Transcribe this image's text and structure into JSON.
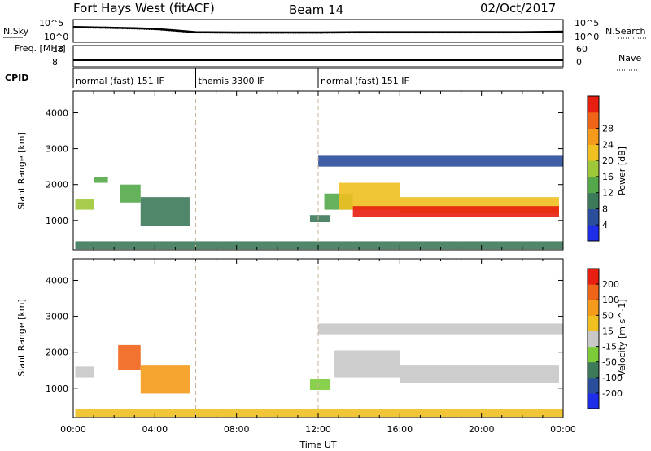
{
  "header": {
    "station": "Fort Hays West (fitACF)",
    "beam": "Beam 14",
    "date": "02/Oct/2017"
  },
  "colors": {
    "noise_trace": "#000000",
    "panel_border": "#000000",
    "dashed_divider": "#c8b49a"
  },
  "chart_data": [
    {
      "type": "line",
      "name": "noise-panel",
      "left_label": "N.Sky",
      "right_label": "N.Search",
      "left_ticks": [
        "10^5",
        "10^0"
      ],
      "right_ticks": [
        "10^5",
        "10^0"
      ],
      "y_scale": "log",
      "x": [
        0,
        1,
        2,
        3,
        4,
        5,
        6,
        8,
        10,
        12,
        14,
        16,
        18,
        20,
        22,
        24
      ],
      "series": [
        {
          "values": [
            3000,
            2500,
            2000,
            1500,
            1000,
            400,
            150,
            120,
            120,
            120,
            150,
            150,
            150,
            150,
            150,
            200
          ]
        }
      ]
    },
    {
      "type": "line",
      "name": "frequency-panel",
      "left_label": "Freq. [MHz]",
      "right_label": "Nave",
      "left_ticks": [
        "18",
        "8"
      ],
      "right_ticks": [
        "60",
        "0"
      ],
      "x": [
        0,
        24
      ],
      "series": [
        {
          "values": [
            10.8,
            10.8
          ]
        }
      ]
    },
    {
      "type": "table",
      "name": "cpid-panel",
      "label": "CPID",
      "modes": [
        {
          "label": "normal (fast) 151 IF",
          "start": 0,
          "end": 6
        },
        {
          "label": "themis 3300 IF",
          "start": 6,
          "end": 12
        },
        {
          "label": "normal (fast) 151 IF",
          "start": 12,
          "end": 24
        }
      ]
    },
    {
      "type": "heatmap",
      "name": "power-panel",
      "ylabel": "Slant Range [km]",
      "xlim": [
        0,
        24
      ],
      "ylim": [
        180,
        4600
      ],
      "yticks": [
        1000,
        2000,
        3000,
        4000
      ],
      "colorbar": {
        "label": "Power [dB]",
        "ticks": [
          "4",
          "8",
          "12",
          "16",
          "20",
          "24",
          "28"
        ],
        "colors": [
          "#1e2ee8",
          "#2a4d9c",
          "#3d7a5a",
          "#55a84a",
          "#9ec83a",
          "#f0c020",
          "#f59a1a",
          "#f06418",
          "#e81e10"
        ]
      },
      "regions": [
        {
          "t0": 0.1,
          "t1": 1.0,
          "r0": 1300,
          "r1": 1600,
          "level": 4
        },
        {
          "t0": 1.0,
          "t1": 1.7,
          "r0": 2050,
          "r1": 2200,
          "level": 3
        },
        {
          "t0": 2.3,
          "t1": 3.3,
          "r0": 1500,
          "r1": 2000,
          "level": 3
        },
        {
          "t0": 3.3,
          "t1": 5.7,
          "r0": 850,
          "r1": 1650,
          "level": 2
        },
        {
          "t0": 0.1,
          "t1": 24,
          "r0": 200,
          "r1": 420,
          "level": 2
        },
        {
          "t0": 11.6,
          "t1": 12.6,
          "r0": 950,
          "r1": 1150,
          "level": 2
        },
        {
          "t0": 12.3,
          "t1": 13.7,
          "r0": 1300,
          "r1": 1750,
          "level": 3
        },
        {
          "t0": 13.0,
          "t1": 16.0,
          "r0": 1300,
          "r1": 2050,
          "level": 5
        },
        {
          "t0": 16.0,
          "t1": 23.8,
          "r0": 1200,
          "r1": 1650,
          "level": 5
        },
        {
          "t0": 13.7,
          "t1": 23.8,
          "r0": 1100,
          "r1": 1400,
          "level": 8
        },
        {
          "t0": 12.0,
          "t1": 24,
          "r0": 2500,
          "r1": 2800,
          "level": 1
        }
      ]
    },
    {
      "type": "heatmap",
      "name": "velocity-panel",
      "ylabel": "Slant Range [km]",
      "xlabel": "Time UT",
      "xlim": [
        0,
        24
      ],
      "ylim": [
        180,
        4600
      ],
      "yticks": [
        1000,
        2000,
        3000,
        4000
      ],
      "xticks": [
        "00:00",
        "04:00",
        "08:00",
        "12:00",
        "16:00",
        "20:00",
        "00:00"
      ],
      "colorbar": {
        "label": "Velocity [m s^-1]",
        "ticks": [
          "200",
          "100",
          "50",
          "15",
          "-15",
          "-50",
          "-100",
          "-200"
        ],
        "colors": [
          "#1e2ee8",
          "#2a4d9c",
          "#3d7a5a",
          "#7ccc3a",
          "#c8c8c8",
          "#f0c020",
          "#f59a1a",
          "#f06418",
          "#e81e10"
        ]
      },
      "regions": [
        {
          "t0": 0.1,
          "t1": 1.0,
          "r0": 1300,
          "r1": 1600,
          "level": 4
        },
        {
          "t0": 2.2,
          "t1": 3.3,
          "r0": 1500,
          "r1": 2200,
          "level": 7
        },
        {
          "t0": 3.3,
          "t1": 5.7,
          "r0": 850,
          "r1": 1650,
          "level": 6
        },
        {
          "t0": 0.1,
          "t1": 24,
          "r0": 200,
          "r1": 420,
          "level": 5
        },
        {
          "t0": 11.6,
          "t1": 12.6,
          "r0": 950,
          "r1": 1250,
          "level": 3
        },
        {
          "t0": 12.8,
          "t1": 16.0,
          "r0": 1300,
          "r1": 2050,
          "level": 4
        },
        {
          "t0": 16.0,
          "t1": 23.8,
          "r0": 1150,
          "r1": 1650,
          "level": 4
        },
        {
          "t0": 12.0,
          "t1": 24,
          "r0": 2500,
          "r1": 2800,
          "level": 4
        }
      ]
    }
  ]
}
